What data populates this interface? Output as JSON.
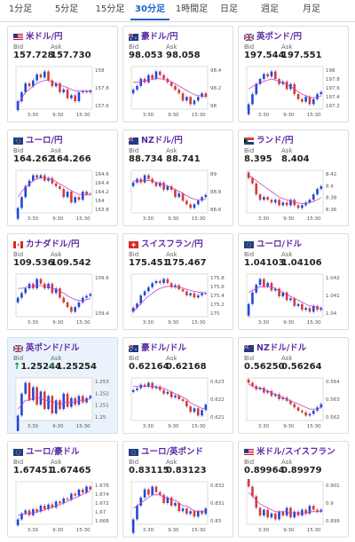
{
  "tabs": [
    "1分足",
    "5分足",
    "15分足",
    "30分足",
    "1時間足",
    "日足",
    "週足",
    "月足"
  ],
  "active_tab": 3,
  "labels": {
    "bid": "Bid",
    "ask": "Ask"
  },
  "colors": {
    "up": "#1f49d6",
    "down": "#d43a3a",
    "ma": "#c444c4",
    "title": "#5b2aa6",
    "arrow": "#1a8a3a"
  },
  "cards": [
    {
      "pair": "米ドル/円",
      "flag": "us",
      "bid": "157.728",
      "ask": "157.730",
      "arrow": false,
      "chart_data": {
        "type": "candlestick",
        "yticks": [
          "158",
          "157.8",
          "157.6"
        ],
        "xticks": [
          "3:30",
          "9:30",
          "15:30"
        ],
        "closes": [
          157.55,
          157.7,
          157.85,
          157.8,
          157.9,
          158.0,
          157.95,
          158.05,
          157.9,
          157.8,
          157.85,
          157.7,
          157.75,
          157.6,
          157.65,
          157.55,
          157.7,
          157.72,
          157.7,
          157.73
        ],
        "ma": [
          157.5,
          157.6,
          157.7,
          157.75,
          157.8,
          157.85,
          157.88,
          157.9,
          157.9,
          157.88,
          157.85,
          157.82,
          157.8,
          157.78,
          157.75,
          157.72,
          157.72,
          157.72,
          157.72,
          157.72
        ]
      }
    },
    {
      "pair": "豪ドル/円",
      "flag": "au",
      "bid": "98.053",
      "ask": "98.058",
      "arrow": false,
      "chart_data": {
        "type": "candlestick",
        "yticks": [
          "98.4",
          "98.2",
          "98"
        ],
        "xticks": [
          "3:30",
          "9:30",
          "15:30"
        ],
        "closes": [
          98.15,
          98.2,
          98.3,
          98.25,
          98.35,
          98.3,
          98.4,
          98.35,
          98.3,
          98.25,
          98.2,
          98.15,
          98.1,
          98.0,
          98.05,
          97.95,
          98.0,
          98.05,
          98.1,
          98.05
        ],
        "ma": [
          98.25,
          98.25,
          98.26,
          98.27,
          98.28,
          98.29,
          98.3,
          98.3,
          98.29,
          98.28,
          98.26,
          98.23,
          98.2,
          98.17,
          98.14,
          98.11,
          98.08,
          98.07,
          98.06,
          98.06
        ]
      }
    },
    {
      "pair": "英ポンド/円",
      "flag": "uk",
      "bid": "197.544",
      "ask": "197.551",
      "arrow": false,
      "chart_data": {
        "type": "candlestick",
        "yticks": [
          "198",
          "197.8",
          "197.6",
          "197.4",
          "197.2"
        ],
        "xticks": [
          "3:30",
          "9:30",
          "15:30"
        ],
        "closes": [
          197.3,
          197.5,
          197.7,
          197.8,
          197.9,
          197.85,
          197.95,
          197.8,
          197.7,
          197.75,
          197.6,
          197.7,
          197.5,
          197.4,
          197.35,
          197.45,
          197.3,
          197.4,
          197.5,
          197.54
        ],
        "ma": [
          197.6,
          197.65,
          197.7,
          197.72,
          197.75,
          197.78,
          197.8,
          197.78,
          197.75,
          197.72,
          197.68,
          197.65,
          197.6,
          197.55,
          197.5,
          197.47,
          197.44,
          197.43,
          197.44,
          197.46
        ]
      }
    },
    {
      "pair": "ユーロ/円",
      "flag": "eu",
      "bid": "164.262",
      "ask": "164.266",
      "arrow": false,
      "chart_data": {
        "type": "candlestick",
        "yticks": [
          "164.6",
          "164.4",
          "164.2",
          "164",
          "163.8"
        ],
        "xticks": [
          "3:30",
          "9:30",
          "15:30"
        ],
        "closes": [
          164.0,
          164.2,
          164.4,
          164.5,
          164.6,
          164.55,
          164.6,
          164.5,
          164.55,
          164.45,
          164.4,
          164.35,
          164.2,
          164.3,
          164.1,
          164.2,
          164.15,
          164.3,
          164.25,
          164.26
        ],
        "ma": [
          164.2,
          164.3,
          164.38,
          164.44,
          164.5,
          164.53,
          164.55,
          164.55,
          164.54,
          164.52,
          164.48,
          164.44,
          164.4,
          164.36,
          164.32,
          164.28,
          164.25,
          164.24,
          164.24,
          164.25
        ]
      }
    },
    {
      "pair": "NZドル/円",
      "flag": "nz",
      "bid": "88.734",
      "ask": "88.741",
      "arrow": false,
      "chart_data": {
        "type": "candlestick",
        "yticks": [
          "89",
          "88.8",
          "88.6"
        ],
        "xticks": [
          "3:30",
          "9:30",
          "15:30"
        ],
        "closes": [
          88.9,
          88.95,
          88.9,
          89.0,
          88.95,
          88.9,
          88.85,
          88.9,
          88.8,
          88.85,
          88.8,
          88.7,
          88.75,
          88.65,
          88.6,
          88.55,
          88.6,
          88.65,
          88.7,
          88.73
        ],
        "ma": [
          88.92,
          88.92,
          88.92,
          88.93,
          88.93,
          88.92,
          88.9,
          88.89,
          88.87,
          88.85,
          88.83,
          88.8,
          88.78,
          88.75,
          88.72,
          88.69,
          88.67,
          88.66,
          88.66,
          88.67
        ]
      }
    },
    {
      "pair": "ランド/円",
      "flag": "za",
      "bid": "8.395",
      "ask": "8.404",
      "arrow": false,
      "chart_data": {
        "type": "candlestick",
        "yticks": [
          "8.42",
          "8.4",
          "8.38",
          "8.36"
        ],
        "xticks": [
          "3:30",
          "9:30",
          "15:30"
        ],
        "closes": [
          8.41,
          8.4,
          8.38,
          8.37,
          8.375,
          8.37,
          8.365,
          8.37,
          8.36,
          8.365,
          8.36,
          8.37,
          8.36,
          8.355,
          8.36,
          8.365,
          8.37,
          8.38,
          8.39,
          8.395
        ],
        "ma": [
          8.415,
          8.41,
          8.405,
          8.4,
          8.395,
          8.39,
          8.385,
          8.38,
          8.375,
          8.372,
          8.37,
          8.368,
          8.366,
          8.364,
          8.363,
          8.364,
          8.365,
          8.367,
          8.37,
          8.374
        ]
      }
    },
    {
      "pair": "カナダドル/円",
      "flag": "ca",
      "bid": "109.536",
      "ask": "109.542",
      "arrow": false,
      "chart_data": {
        "type": "candlestick",
        "yticks": [
          "109.6",
          "109.4"
        ],
        "xticks": [
          "3:30",
          "9:30",
          "15:30"
        ],
        "closes": [
          109.5,
          109.55,
          109.6,
          109.65,
          109.6,
          109.7,
          109.65,
          109.6,
          109.65,
          109.55,
          109.6,
          109.5,
          109.45,
          109.4,
          109.35,
          109.4,
          109.45,
          109.5,
          109.52,
          109.54
        ],
        "ma": [
          109.6,
          109.6,
          109.61,
          109.62,
          109.62,
          109.63,
          109.63,
          109.62,
          109.62,
          109.6,
          109.59,
          109.57,
          109.55,
          109.52,
          109.5,
          109.48,
          109.47,
          109.47,
          109.48,
          109.49
        ]
      }
    },
    {
      "pair": "スイスフラン/円",
      "flag": "ch",
      "bid": "175.451",
      "ask": "175.467",
      "arrow": false,
      "chart_data": {
        "type": "candlestick",
        "yticks": [
          "175.8",
          "175.6",
          "175.4",
          "175.2",
          "175"
        ],
        "xticks": [
          "3:30",
          "9:30",
          "15:30"
        ],
        "closes": [
          175.1,
          175.2,
          175.4,
          175.5,
          175.6,
          175.7,
          175.75,
          175.7,
          175.8,
          175.7,
          175.6,
          175.65,
          175.55,
          175.5,
          175.4,
          175.45,
          175.35,
          175.4,
          175.45,
          175.45
        ],
        "ma": [
          175.0,
          175.1,
          175.2,
          175.3,
          175.38,
          175.45,
          175.52,
          175.57,
          175.6,
          175.62,
          175.62,
          175.61,
          175.6,
          175.58,
          175.55,
          175.52,
          175.5,
          175.48,
          175.47,
          175.46
        ]
      }
    },
    {
      "pair": "ユーロ/ドル",
      "flag": "eu",
      "bid": "1.04103",
      "ask": "1.04106",
      "arrow": false,
      "chart_data": {
        "type": "candlestick",
        "yticks": [
          "1.042",
          "1.041",
          "1.04"
        ],
        "xticks": [
          "3:30",
          "9:30",
          "15:30"
        ],
        "closes": [
          1.0412,
          1.0418,
          1.0422,
          1.0425,
          1.0421,
          1.0423,
          1.0419,
          1.042,
          1.0416,
          1.0418,
          1.0414,
          1.0415,
          1.0411,
          1.0412,
          1.0409,
          1.041,
          1.0408,
          1.0411,
          1.0409,
          1.041
        ],
        "ma": [
          1.0418,
          1.0419,
          1.042,
          1.0421,
          1.0421,
          1.0421,
          1.0421,
          1.042,
          1.0419,
          1.0418,
          1.0417,
          1.0416,
          1.0415,
          1.0414,
          1.0413,
          1.0412,
          1.0411,
          1.0411,
          1.041,
          1.041
        ]
      }
    },
    {
      "pair": "英ポンド/ドル",
      "flag": "uk",
      "bid": "1.25244",
      "ask": "1.25254",
      "arrow": true,
      "highlight": true,
      "chart_data": {
        "type": "candlestick",
        "yticks": [
          "1.253",
          "1.252",
          "1.251",
          "1.25"
        ],
        "xticks": [
          "3:30",
          "9:30",
          "15:30"
        ],
        "closes": [
          1.2515,
          1.2525,
          1.253,
          1.2522,
          1.2528,
          1.252,
          1.2526,
          1.2518,
          1.2524,
          1.2516,
          1.2522,
          1.2518,
          1.2525,
          1.2519,
          1.2523,
          1.252,
          1.2524,
          1.2521,
          1.2523,
          1.2524
        ],
        "ma": [
          1.2518,
          1.252,
          1.2522,
          1.2522,
          1.2523,
          1.2523,
          1.2523,
          1.2522,
          1.2522,
          1.2521,
          1.2521,
          1.252,
          1.2521,
          1.2521,
          1.2521,
          1.2521,
          1.2522,
          1.2522,
          1.2522,
          1.2523
        ]
      }
    },
    {
      "pair": "豪ドル/ドル",
      "flag": "au",
      "bid": "0.62164",
      "ask": "0.62168",
      "arrow": false,
      "chart_data": {
        "type": "candlestick",
        "yticks": [
          "0.623",
          "0.622",
          "0.621"
        ],
        "xticks": [
          "3:30",
          "9:30",
          "15:30"
        ],
        "closes": [
          0.6224,
          0.6225,
          0.6227,
          0.6226,
          0.6228,
          0.6225,
          0.6226,
          0.6224,
          0.6222,
          0.6223,
          0.622,
          0.6221,
          0.6219,
          0.6218,
          0.6215,
          0.6212,
          0.6214,
          0.621,
          0.6213,
          0.6216
        ],
        "ma": [
          0.6226,
          0.6226,
          0.6226,
          0.6226,
          0.6226,
          0.6226,
          0.6226,
          0.6225,
          0.6225,
          0.6224,
          0.6223,
          0.6222,
          0.6221,
          0.622,
          0.6219,
          0.6217,
          0.6216,
          0.6215,
          0.6214,
          0.6214
        ]
      }
    },
    {
      "pair": "NZドル/ドル",
      "flag": "nz",
      "bid": "0.56250",
      "ask": "0.56264",
      "arrow": false,
      "chart_data": {
        "type": "candlestick",
        "yticks": [
          "0.564",
          "0.563",
          "0.562"
        ],
        "xticks": [
          "3:30",
          "9:30",
          "15:30"
        ],
        "closes": [
          0.5638,
          0.5636,
          0.5634,
          0.5635,
          0.5632,
          0.5633,
          0.563,
          0.5631,
          0.5628,
          0.5629,
          0.5627,
          0.5625,
          0.5623,
          0.5621,
          0.562,
          0.5618,
          0.5619,
          0.5621,
          0.5623,
          0.5625
        ],
        "ma": [
          0.5637,
          0.5636,
          0.5635,
          0.5635,
          0.5634,
          0.5633,
          0.5632,
          0.5631,
          0.563,
          0.5629,
          0.5628,
          0.5627,
          0.5626,
          0.5625,
          0.5624,
          0.5623,
          0.5622,
          0.5622,
          0.5622,
          0.5623
        ]
      }
    },
    {
      "pair": "ユーロ/豪ドル",
      "flag": "eu",
      "bid": "1.67451",
      "ask": "1.67465",
      "arrow": false,
      "chart_data": {
        "type": "candlestick",
        "yticks": [
          "1.676",
          "1.674",
          "1.672",
          "1.67",
          "1.668"
        ],
        "xticks": [
          "3:30",
          "9:30",
          "15:30"
        ],
        "closes": [
          1.6695,
          1.6705,
          1.671,
          1.6702,
          1.6712,
          1.6708,
          1.6718,
          1.6712,
          1.672,
          1.6715,
          1.6725,
          1.6722,
          1.673,
          1.6728,
          1.6738,
          1.6735,
          1.6745,
          1.674,
          1.675,
          1.6745
        ],
        "ma": [
          1.6702,
          1.6703,
          1.6704,
          1.6705,
          1.6706,
          1.6707,
          1.6709,
          1.6711,
          1.6713,
          1.6715,
          1.6717,
          1.672,
          1.6722,
          1.6725,
          1.6728,
          1.6731,
          1.6734,
          1.6737,
          1.674,
          1.6742
        ]
      }
    },
    {
      "pair": "ユーロ/英ポンド",
      "flag": "eu",
      "bid": "0.83115",
      "ask": "0.83123",
      "arrow": false,
      "chart_data": {
        "type": "candlestick",
        "yticks": [
          "0.832",
          "0.831",
          "0.83"
        ],
        "xticks": [
          "3:30",
          "9:30",
          "15:30"
        ],
        "closes": [
          0.8308,
          0.8313,
          0.8316,
          0.8319,
          0.8317,
          0.832,
          0.8318,
          0.8317,
          0.8314,
          0.8316,
          0.8313,
          0.8314,
          0.8311,
          0.8312,
          0.831,
          0.8311,
          0.8309,
          0.8311,
          0.831,
          0.8312
        ],
        "ma": [
          0.8312,
          0.8313,
          0.8314,
          0.8315,
          0.8316,
          0.8317,
          0.8317,
          0.8317,
          0.8316,
          0.8316,
          0.8315,
          0.8315,
          0.8314,
          0.8313,
          0.8313,
          0.8312,
          0.8311,
          0.8311,
          0.8311,
          0.8311
        ]
      }
    },
    {
      "pair": "米ドル/スイスフラン",
      "flag": "us",
      "bid": "0.89964",
      "ask": "0.89979",
      "arrow": false,
      "chart_data": {
        "type": "candlestick",
        "yticks": [
          "0.901",
          "0.9",
          "0.899"
        ],
        "xticks": [
          "3:30",
          "9:30",
          "15:30"
        ],
        "closes": [
          0.9009,
          0.9004,
          0.8998,
          0.8994,
          0.8997,
          0.8993,
          0.8995,
          0.8992,
          0.8996,
          0.8994,
          0.8998,
          0.8993,
          0.8996,
          0.8994,
          0.8997,
          0.8995,
          0.8999,
          0.8997,
          0.8996,
          0.8997
        ],
        "ma": [
          0.9006,
          0.9004,
          0.9002,
          0.9,
          0.8999,
          0.8998,
          0.8997,
          0.8996,
          0.8996,
          0.8996,
          0.8996,
          0.8995,
          0.8995,
          0.8995,
          0.8995,
          0.8995,
          0.8996,
          0.8996,
          0.8996,
          0.8996
        ]
      }
    }
  ]
}
